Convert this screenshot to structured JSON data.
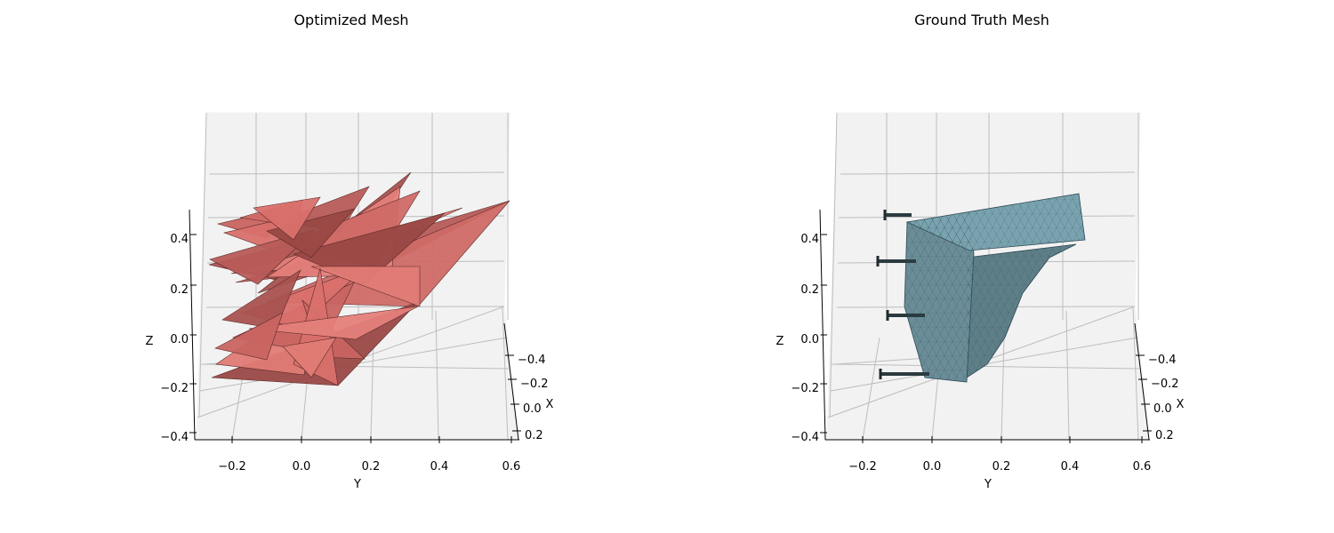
{
  "chart_data": [
    {
      "type": "3d-mesh",
      "title": "Optimized Mesh",
      "xlabel": "X",
      "ylabel": "Y",
      "zlabel": "Z",
      "x_ticks": [
        "−0.4",
        "−0.2",
        "0.0",
        "0.2"
      ],
      "y_ticks": [
        "−0.2",
        "0.0",
        "0.2",
        "0.4",
        "0.6"
      ],
      "z_ticks": [
        "−0.4",
        "−0.2",
        "0.0",
        "0.2",
        "0.4"
      ],
      "xlim": [
        -0.5,
        0.25
      ],
      "ylim": [
        -0.3,
        0.6
      ],
      "zlim": [
        -0.45,
        0.45
      ],
      "face_color": "#d9706b",
      "edge_color": "#5a2a2a",
      "grid": true
    },
    {
      "type": "3d-mesh",
      "title": "Ground Truth Mesh",
      "xlabel": "X",
      "ylabel": "Y",
      "zlabel": "Z",
      "x_ticks": [
        "−0.4",
        "−0.2",
        "0.0",
        "0.2"
      ],
      "y_ticks": [
        "−0.2",
        "0.0",
        "0.2",
        "0.4",
        "0.6"
      ],
      "z_ticks": [
        "−0.4",
        "−0.2",
        "0.0",
        "0.2",
        "0.4"
      ],
      "xlim": [
        -0.5,
        0.25
      ],
      "ylim": [
        -0.3,
        0.6
      ],
      "zlim": [
        -0.45,
        0.45
      ],
      "face_color": "#7aa3b0",
      "edge_color": "#2f4a55",
      "grid": true
    }
  ]
}
